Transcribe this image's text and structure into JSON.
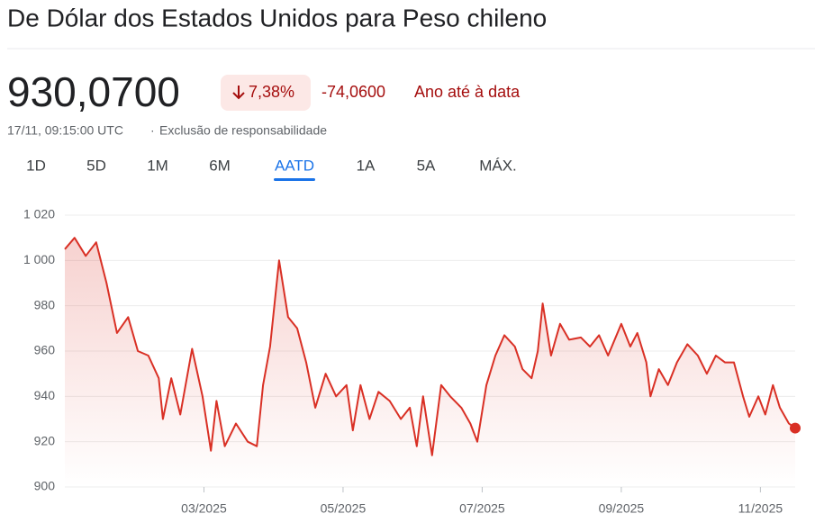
{
  "header": {
    "title": "De Dólar dos Estados Unidos para Peso chileno",
    "price": "930,0700",
    "change_percent": "7,38%",
    "change": "-74,0600",
    "period": "Ano até à data",
    "timestamp": "17/11, 09:15:00 UTC",
    "separator": "·",
    "disclaimer": "Exclusão de responsabilidade"
  },
  "tabs": [
    "1D",
    "5D",
    "1M",
    "6M",
    "AATD",
    "1A",
    "5A",
    "MÁX."
  ],
  "chart_data": {
    "type": "line",
    "series": [
      {
        "color": "#d93025",
        "x": [
          1.0,
          1.14,
          1.3,
          1.45,
          1.6,
          1.75,
          1.91,
          2.05,
          2.2,
          2.35,
          2.41,
          2.53,
          2.66,
          2.83,
          2.98,
          3.1,
          3.18,
          3.3,
          3.46,
          3.63,
          3.76,
          3.85,
          3.95,
          4.08,
          4.21,
          4.34,
          4.47,
          4.6,
          4.75,
          4.9,
          5.05,
          5.14,
          5.25,
          5.38,
          5.51,
          5.67,
          5.83,
          5.96,
          6.06,
          6.15,
          6.28,
          6.41,
          6.54,
          6.7,
          6.83,
          6.93,
          7.06,
          7.19,
          7.32,
          7.47,
          7.58,
          7.71,
          7.8,
          7.87,
          7.99,
          8.12,
          8.25,
          8.42,
          8.55,
          8.68,
          8.81,
          9.0,
          9.13,
          9.23,
          9.36,
          9.42,
          9.54,
          9.67,
          9.8,
          9.95,
          10.1,
          10.23,
          10.36,
          10.49,
          10.62,
          10.75,
          10.84,
          10.97,
          11.07,
          11.18,
          11.28,
          11.41,
          11.5
        ],
        "values": [
          1005,
          1010,
          1002,
          1008,
          990,
          968,
          975,
          960,
          958,
          948,
          930,
          948,
          932,
          961,
          940,
          916,
          938,
          918,
          928,
          920,
          918,
          945,
          962,
          1000,
          975,
          970,
          955,
          935,
          950,
          940,
          945,
          925,
          945,
          930,
          942,
          938,
          930,
          935,
          918,
          940,
          914,
          945,
          940,
          935,
          928,
          920,
          945,
          958,
          967,
          962,
          952,
          948,
          960,
          981,
          958,
          972,
          965,
          966,
          962,
          967,
          958,
          972,
          962,
          968,
          955,
          940,
          952,
          945,
          955,
          963,
          958,
          950,
          958,
          955,
          955,
          940,
          931,
          940,
          932,
          945,
          935,
          928,
          926
        ]
      }
    ],
    "xlim": [
      1,
      11.5
    ],
    "xticks": [
      {
        "value": 3,
        "label": "03/2025"
      },
      {
        "value": 5,
        "label": "05/2025"
      },
      {
        "value": 7,
        "label": "07/2025"
      },
      {
        "value": 9,
        "label": "09/2025"
      },
      {
        "value": 11,
        "label": "11/2025"
      }
    ],
    "ylim": [
      900,
      1020
    ],
    "yticks": [
      900,
      920,
      940,
      960,
      980,
      {
        "value": 1000,
        "label": "1 000"
      },
      {
        "value": 1020,
        "label": "1 020"
      }
    ],
    "grid": true
  }
}
